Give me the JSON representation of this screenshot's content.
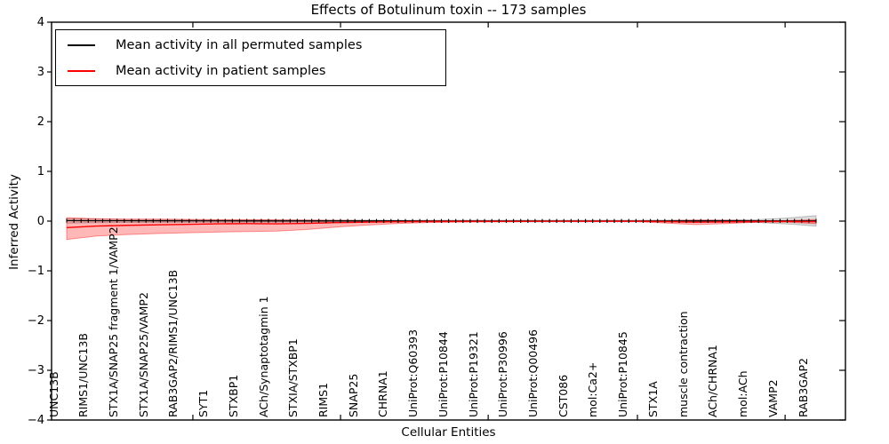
{
  "title": "Effects of Botulinum toxin -- 173 samples",
  "axes": {
    "xlabel": "Cellular Entities",
    "ylabel": "Inferred Activity",
    "ylim": [
      -4,
      4
    ],
    "ytick_labels": [
      "4",
      "3",
      "2",
      "1",
      "0",
      "−1",
      "−2",
      "−3",
      "−4"
    ],
    "ytick_values": [
      4,
      3,
      2,
      1,
      0,
      -1,
      -2,
      -3,
      -4
    ]
  },
  "legend": {
    "position": "upper left",
    "items": [
      {
        "label": "Mean activity in all permuted samples",
        "color": "#000000"
      },
      {
        "label": "Mean activity in patient samples",
        "color": "#ff0000"
      }
    ]
  },
  "chart_data": {
    "type": "line",
    "title": "Effects of Botulinum toxin -- 173 samples",
    "xlabel": "Cellular Entities",
    "ylabel": "Inferred Activity",
    "ylim": [
      -4,
      4
    ],
    "grid": false,
    "legend_position": "upper left",
    "categories": [
      "UNC13B",
      "RIMS1/UNC13B",
      "STX1A/SNAP25 fragment 1/VAMP2",
      "STX1A/SNAP25/VAMP2",
      "RAB3GAP2/RIMS1/UNC13B",
      "SYT1",
      "STXBP1",
      "ACh/Synaptotagmin 1",
      "STXIA/STXBP1",
      "RIMS1",
      "SNAP25",
      "CHRNA1",
      "UniProt:Q60393",
      "UniProt:P10844",
      "UniProt:P19321",
      "UniProt:P30996",
      "UniProt:Q00496",
      "CST086",
      "mol:Ca2+",
      "UniProt:P10845",
      "STX1A",
      "muscle contraction",
      "ACh/CHRNA1",
      "mol:ACh",
      "VAMP2",
      "RAB3GAP2"
    ],
    "series": [
      {
        "name": "Mean activity in all permuted samples",
        "color": "#000000",
        "band_color": "rgba(128,128,128,0.28)",
        "band_edge_color": "rgba(90,90,90,0.35)",
        "marker": "|",
        "marker_count": 105,
        "values": [
          0.01,
          0.008,
          0.008,
          0.007,
          0.006,
          0.006,
          0.005,
          0.005,
          0.005,
          0.004,
          0.004,
          0.004,
          0.003,
          0.003,
          0.003,
          0.003,
          0.003,
          0.003,
          0.003,
          0.003,
          0.003,
          0.004,
          0.004,
          0.004,
          0.005,
          0.005
        ],
        "band_upper": [
          0.05,
          0.04,
          0.03,
          0.028,
          0.026,
          0.025,
          0.024,
          0.024,
          0.022,
          0.02,
          0.02,
          0.018,
          0.018,
          0.018,
          0.018,
          0.018,
          0.018,
          0.018,
          0.018,
          0.018,
          0.02,
          0.022,
          0.024,
          0.03,
          0.06,
          0.11
        ],
        "band_lower": [
          -0.04,
          -0.032,
          -0.026,
          -0.024,
          -0.022,
          -0.02,
          -0.02,
          -0.02,
          -0.018,
          -0.016,
          -0.016,
          -0.015,
          -0.015,
          -0.015,
          -0.015,
          -0.015,
          -0.015,
          -0.015,
          -0.015,
          -0.015,
          -0.016,
          -0.018,
          -0.02,
          -0.026,
          -0.055,
          -0.1
        ]
      },
      {
        "name": "Mean activity in patient samples",
        "color": "#ff0000",
        "band_color": "rgba(255,0,0,0.28)",
        "band_edge_color": "rgba(255,0,0,0.4)",
        "marker": null,
        "values": [
          -0.13,
          -0.1,
          -0.085,
          -0.075,
          -0.065,
          -0.055,
          -0.05,
          -0.055,
          -0.045,
          -0.03,
          -0.02,
          -0.012,
          -0.008,
          -0.006,
          -0.005,
          -0.005,
          -0.004,
          -0.004,
          -0.004,
          -0.004,
          -0.01,
          -0.022,
          -0.015,
          -0.008,
          -0.006,
          -0.01
        ],
        "band_upper": [
          0.07,
          0.05,
          0.04,
          0.04,
          0.035,
          0.03,
          0.03,
          0.025,
          0.02,
          0.015,
          0.01,
          0.008,
          0.006,
          0.005,
          0.004,
          0.004,
          0.004,
          0.004,
          0.004,
          0.004,
          0.01,
          0.02,
          0.015,
          0.008,
          0.01,
          0.03
        ],
        "band_lower": [
          -0.37,
          -0.3,
          -0.27,
          -0.25,
          -0.235,
          -0.22,
          -0.21,
          -0.2,
          -0.17,
          -0.12,
          -0.08,
          -0.05,
          -0.03,
          -0.02,
          -0.015,
          -0.012,
          -0.01,
          -0.01,
          -0.01,
          -0.01,
          -0.04,
          -0.07,
          -0.05,
          -0.025,
          -0.02,
          -0.05
        ]
      }
    ]
  }
}
